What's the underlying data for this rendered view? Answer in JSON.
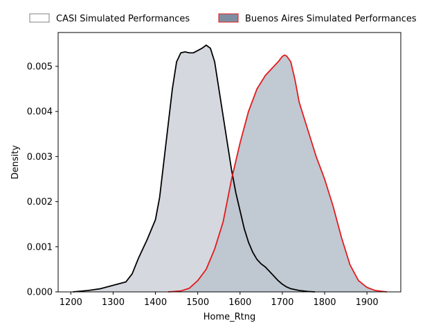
{
  "chart_data": {
    "type": "area",
    "title": "",
    "xlabel": "Home_Rtng",
    "ylabel": "Density",
    "xlim": [
      1170,
      1980
    ],
    "ylim": [
      0,
      0.00575
    ],
    "xticks": [
      1200,
      1300,
      1400,
      1500,
      1600,
      1700,
      1800,
      1900
    ],
    "yticks": [
      0.0,
      0.001,
      0.002,
      0.003,
      0.004,
      0.005
    ],
    "ytick_labels": [
      "0.000",
      "0.001",
      "0.002",
      "0.003",
      "0.004",
      "0.005"
    ],
    "grid": false,
    "legend_position": "top, above plot",
    "series": [
      {
        "name": "CASI Simulated Performances",
        "line_color": "#000000",
        "fill_color": "#d0d4db",
        "legend_edge": "#808080",
        "legend_fill": "#ffffff",
        "x": [
          1205,
          1240,
          1270,
          1290,
          1310,
          1330,
          1345,
          1360,
          1380,
          1400,
          1410,
          1420,
          1430,
          1440,
          1450,
          1460,
          1470,
          1480,
          1490,
          1500,
          1510,
          1520,
          1530,
          1540,
          1550,
          1560,
          1570,
          1580,
          1590,
          1600,
          1610,
          1620,
          1630,
          1640,
          1650,
          1660,
          1670,
          1680,
          1690,
          1700,
          1710,
          1720,
          1740,
          1760,
          1777
        ],
        "y": [
          0.0,
          3e-05,
          7e-05,
          0.00012,
          0.00017,
          0.00022,
          0.0004,
          0.00075,
          0.00115,
          0.0016,
          0.0021,
          0.0029,
          0.0037,
          0.0045,
          0.0051,
          0.0053,
          0.00532,
          0.0053,
          0.0053,
          0.00535,
          0.0054,
          0.00547,
          0.0054,
          0.0051,
          0.0045,
          0.0039,
          0.0033,
          0.0027,
          0.0022,
          0.0018,
          0.0014,
          0.0011,
          0.00088,
          0.00072,
          0.00062,
          0.00055,
          0.00045,
          0.00035,
          0.00025,
          0.00017,
          0.00011,
          7e-05,
          3e-05,
          1e-05,
          0.0
        ]
      },
      {
        "name": "Buenos Aires Simulated Performances",
        "line_color": "#e31a1c",
        "fill_color": "#bec6d0",
        "legend_edge": "#e31a1c",
        "legend_fill": "#7d8ea3",
        "x": [
          1430,
          1460,
          1480,
          1500,
          1520,
          1540,
          1560,
          1580,
          1600,
          1620,
          1640,
          1660,
          1680,
          1690,
          1700,
          1705,
          1710,
          1720,
          1730,
          1740,
          1760,
          1780,
          1800,
          1820,
          1840,
          1860,
          1880,
          1900,
          1920,
          1947
        ],
        "y": [
          0.0,
          2e-05,
          8e-05,
          0.00025,
          0.0005,
          0.00095,
          0.00155,
          0.0025,
          0.0033,
          0.004,
          0.0045,
          0.0048,
          0.005,
          0.0051,
          0.00522,
          0.00525,
          0.00523,
          0.0051,
          0.0047,
          0.0042,
          0.0036,
          0.003,
          0.0025,
          0.0019,
          0.0012,
          0.0006,
          0.00025,
          0.0001,
          3e-05,
          0.0
        ]
      }
    ]
  }
}
